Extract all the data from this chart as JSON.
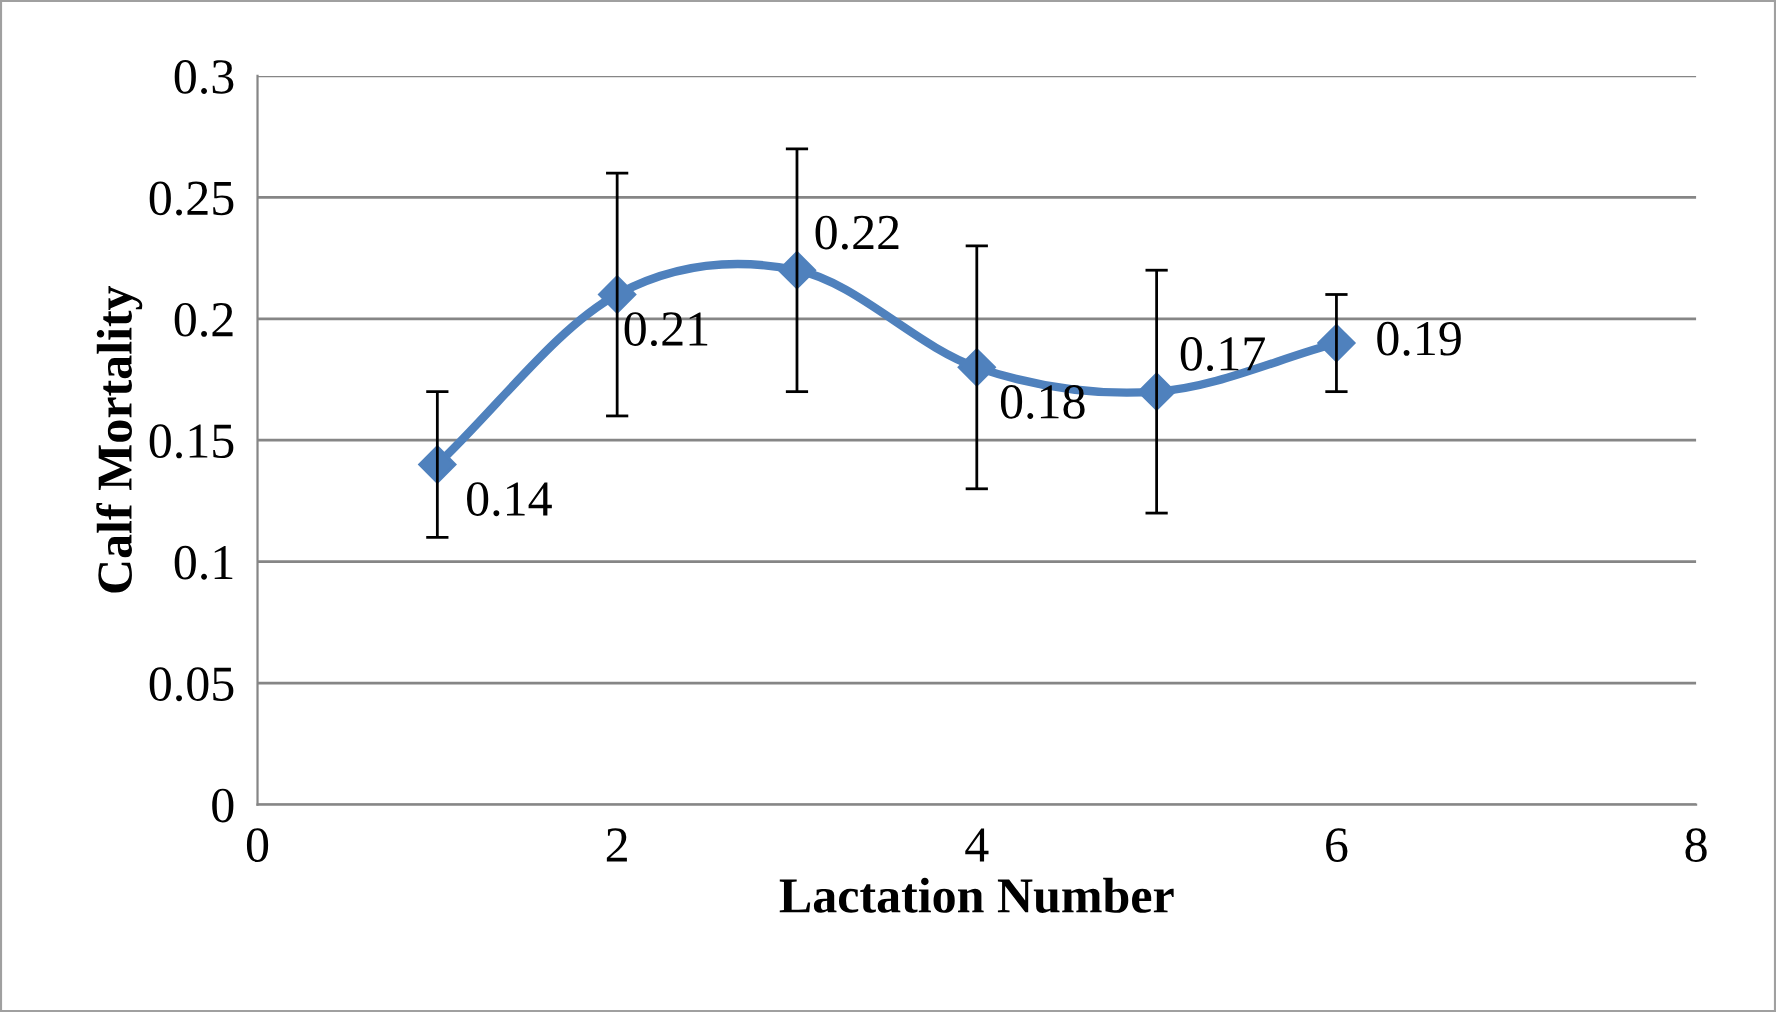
{
  "chart_data": {
    "type": "line",
    "xlabel": "Lactation Number",
    "ylabel": "Calf Mortality",
    "x": [
      1,
      2,
      3,
      4,
      5,
      6
    ],
    "series": [
      {
        "color": "#4f81bd",
        "values": [
          0.14,
          0.21,
          0.22,
          0.18,
          0.17,
          0.19
        ],
        "errors": [
          0.03,
          0.05,
          0.05,
          0.05,
          0.05,
          0.02
        ]
      }
    ],
    "xlim": [
      0,
      8
    ],
    "xticks": [
      0,
      2,
      4,
      6,
      8
    ],
    "ylim": [
      0,
      0.3
    ],
    "yticks": [
      0,
      0.05,
      0.1,
      0.15,
      0.2,
      0.25,
      0.3
    ],
    "grid": "y",
    "marker": "diamond",
    "line_style": "solid",
    "data_labels": true
  }
}
